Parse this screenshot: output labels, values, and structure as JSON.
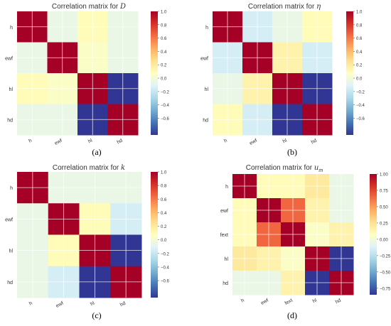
{
  "labels": [
    "(a)",
    "(b)",
    "(c)",
    "(d)"
  ],
  "chart_data": [
    {
      "type": "heatmap",
      "title_prefix": "Correlation matrix for ",
      "title_symbol": "D",
      "categories": [
        "h",
        "ewf",
        "hl",
        "hd"
      ],
      "values": [
        [
          1.0,
          -0.05,
          0.1,
          -0.05
        ],
        [
          -0.05,
          1.0,
          0.05,
          -0.05
        ],
        [
          0.1,
          0.05,
          1.0,
          -0.85
        ],
        [
          -0.05,
          -0.05,
          -0.85,
          1.0
        ]
      ],
      "colorbar": {
        "min": -0.85,
        "max": 1.0,
        "ticks": [
          1.0,
          0.8,
          0.6,
          0.4,
          0.2,
          0.0,
          -0.2,
          -0.4,
          -0.6
        ],
        "tick_labels": [
          "1.0",
          "0.8",
          "0.6",
          "0.4",
          "0.2",
          "0.0",
          "−0.2",
          "−0.4",
          "−0.6"
        ]
      }
    },
    {
      "type": "heatmap",
      "title_prefix": "Correlation matrix for ",
      "title_symbol": "η",
      "categories": [
        "h",
        "ewf",
        "hl",
        "hd"
      ],
      "values": [
        [
          1.0,
          -0.15,
          -0.05,
          0.1
        ],
        [
          -0.15,
          1.0,
          0.15,
          -0.15
        ],
        [
          -0.05,
          0.15,
          1.0,
          -0.85
        ],
        [
          0.1,
          -0.15,
          -0.85,
          1.0
        ]
      ],
      "colorbar": {
        "min": -0.85,
        "max": 1.0,
        "ticks": [
          1.0,
          0.8,
          0.6,
          0.4,
          0.2,
          0.0,
          -0.2,
          -0.4,
          -0.6
        ],
        "tick_labels": [
          "1.0",
          "0.8",
          "0.6",
          "0.4",
          "0.2",
          "0.0",
          "−0.2",
          "−0.4",
          "−0.6"
        ]
      }
    },
    {
      "type": "heatmap",
      "title_prefix": "Correlation matrix for ",
      "title_symbol": "k",
      "categories": [
        "h",
        "ewf",
        "hl",
        "hd"
      ],
      "values": [
        [
          1.0,
          -0.05,
          -0.05,
          -0.05
        ],
        [
          -0.05,
          1.0,
          0.1,
          -0.15
        ],
        [
          -0.05,
          0.1,
          1.0,
          -0.85
        ],
        [
          -0.05,
          -0.15,
          -0.85,
          1.0
        ]
      ],
      "colorbar": {
        "min": -0.85,
        "max": 1.0,
        "ticks": [
          1.0,
          0.8,
          0.6,
          0.4,
          0.2,
          0.0,
          -0.2,
          -0.4,
          -0.6
        ],
        "tick_labels": [
          "1.0",
          "0.8",
          "0.6",
          "0.4",
          "0.2",
          "0.0",
          "−0.2",
          "−0.4",
          "−0.6"
        ]
      }
    },
    {
      "type": "heatmap",
      "title_prefix": "Correlation matrix for ",
      "title_symbol": "u",
      "title_subscript": "m",
      "categories": [
        "h",
        "ewf",
        "fext",
        "hl",
        "hd"
      ],
      "values": [
        [
          1.0,
          0.1,
          0.1,
          0.2,
          -0.05
        ],
        [
          0.1,
          1.0,
          0.65,
          0.15,
          -0.05
        ],
        [
          0.1,
          0.65,
          1.0,
          0.05,
          0.15
        ],
        [
          0.2,
          0.15,
          0.05,
          1.0,
          -0.85
        ],
        [
          -0.05,
          -0.05,
          0.15,
          -0.85,
          1.0
        ]
      ],
      "colorbar": {
        "min": -0.85,
        "max": 1.0,
        "ticks": [
          1.0,
          0.75,
          0.5,
          0.25,
          0.0,
          -0.25,
          -0.5,
          -0.75
        ],
        "tick_labels": [
          "1.00",
          "0.75",
          "0.50",
          "0.25",
          "0.00",
          "−0.25",
          "−0.50",
          "−0.75"
        ]
      }
    }
  ]
}
